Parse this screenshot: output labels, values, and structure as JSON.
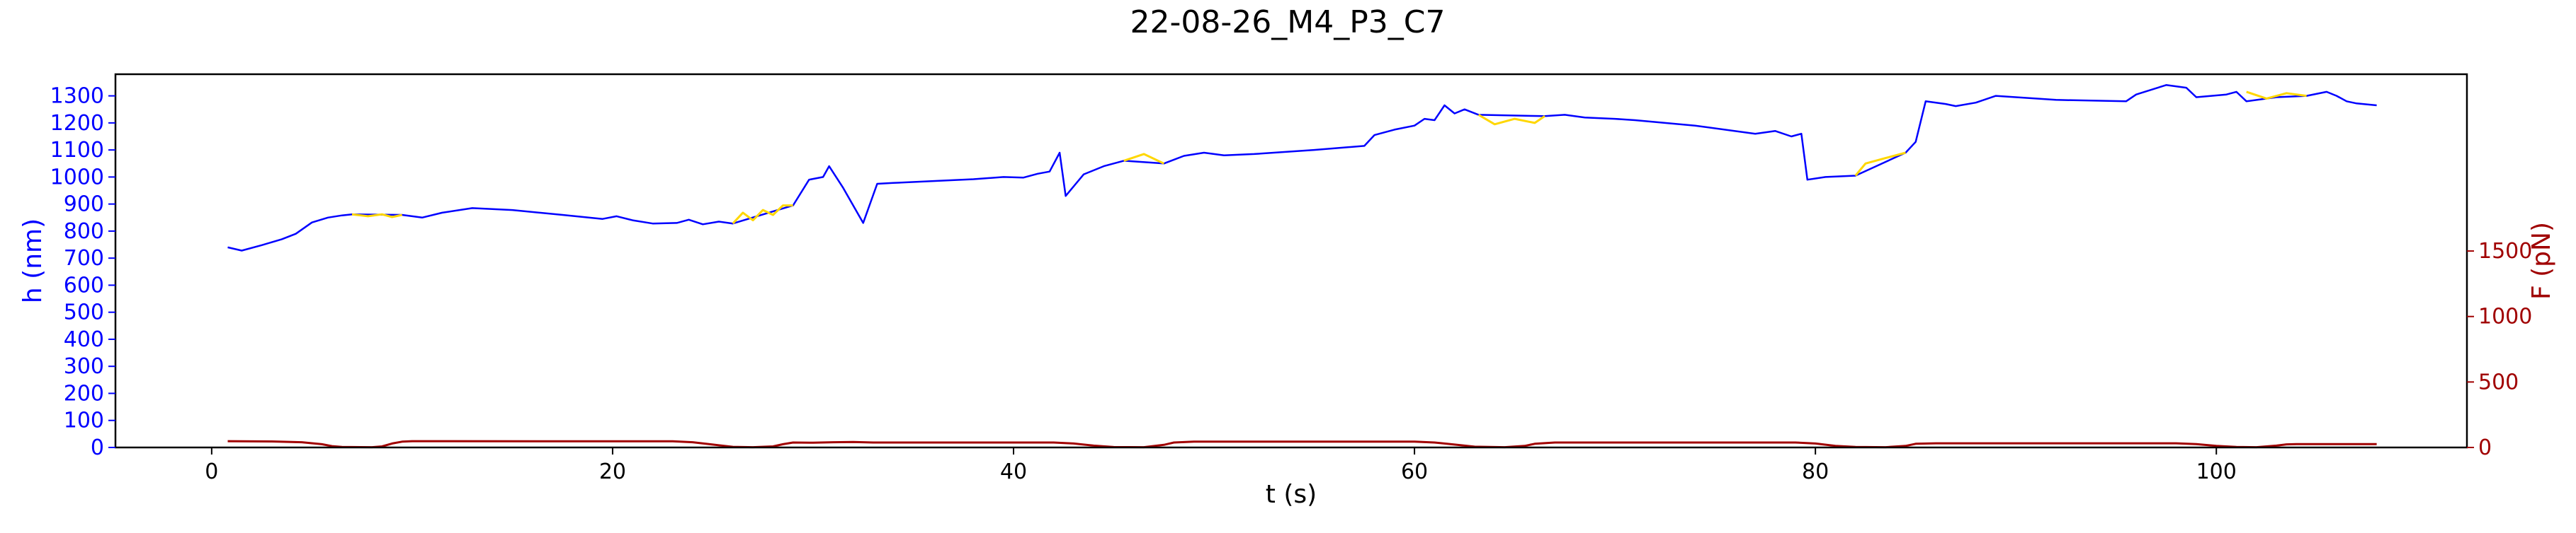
{
  "chart_data": {
    "type": "line",
    "title": "22-08-26_M4_P3_C7",
    "xlabel": "t (s)",
    "ylabel_left": "h (nm)",
    "ylabel_right": "F (pN)",
    "xlim": [
      -4.8,
      112.5
    ],
    "ylim_left": [
      0,
      1380
    ],
    "ylim_right": [
      0,
      2850
    ],
    "x_ticks": [
      0,
      20,
      40,
      60,
      80,
      100
    ],
    "y_left_ticks": [
      0,
      100,
      200,
      300,
      400,
      500,
      600,
      700,
      800,
      900,
      1000,
      1100,
      1200,
      1300
    ],
    "y_right_ticks": [
      0,
      500,
      1000,
      1500
    ],
    "grid": false,
    "colors": {
      "height": "#0000ff",
      "highlight": "#ffd700",
      "force": "#a00000",
      "left_axis": "#0000ff",
      "right_axis": "#a00000",
      "frame": "#000000"
    },
    "series": [
      {
        "role": "height",
        "axis": "left",
        "points": [
          [
            0.8,
            740
          ],
          [
            1.5,
            728
          ],
          [
            2.5,
            748
          ],
          [
            3.5,
            770
          ],
          [
            4.2,
            790
          ],
          [
            5.0,
            832
          ],
          [
            5.8,
            850
          ],
          [
            6.5,
            858
          ],
          [
            7.0,
            862
          ],
          [
            9.5,
            860
          ],
          [
            10.5,
            850
          ],
          [
            11.5,
            868
          ],
          [
            13.0,
            885
          ],
          [
            15.0,
            878
          ],
          [
            17.5,
            860
          ],
          [
            19.5,
            845
          ],
          [
            20.2,
            855
          ],
          [
            21.0,
            840
          ],
          [
            22.0,
            828
          ],
          [
            23.2,
            830
          ],
          [
            23.8,
            842
          ],
          [
            24.5,
            825
          ],
          [
            25.3,
            835
          ],
          [
            26.0,
            828
          ],
          [
            29.0,
            895
          ],
          [
            29.8,
            990
          ],
          [
            30.5,
            1000
          ],
          [
            30.8,
            1040
          ],
          [
            31.5,
            960
          ],
          [
            32.5,
            830
          ],
          [
            33.2,
            975
          ],
          [
            34.0,
            978
          ],
          [
            36.0,
            985
          ],
          [
            38.0,
            992
          ],
          [
            39.5,
            1000
          ],
          [
            40.5,
            998
          ],
          [
            41.2,
            1012
          ],
          [
            41.8,
            1020
          ],
          [
            42.3,
            1090
          ],
          [
            42.6,
            930
          ],
          [
            43.5,
            1010
          ],
          [
            44.5,
            1040
          ],
          [
            45.5,
            1060
          ],
          [
            47.5,
            1050
          ],
          [
            48.5,
            1078
          ],
          [
            49.5,
            1090
          ],
          [
            50.5,
            1080
          ],
          [
            52.0,
            1085
          ],
          [
            55.0,
            1100
          ],
          [
            57.5,
            1115
          ],
          [
            58.0,
            1155
          ],
          [
            59.0,
            1175
          ],
          [
            60.0,
            1190
          ],
          [
            60.5,
            1215
          ],
          [
            61.0,
            1210
          ],
          [
            61.5,
            1265
          ],
          [
            62.0,
            1235
          ],
          [
            62.5,
            1250
          ],
          [
            63.2,
            1230
          ],
          [
            66.5,
            1225
          ],
          [
            67.5,
            1230
          ],
          [
            68.5,
            1220
          ],
          [
            70.0,
            1215
          ],
          [
            71.0,
            1210
          ],
          [
            74.0,
            1190
          ],
          [
            77.0,
            1160
          ],
          [
            78.0,
            1170
          ],
          [
            78.8,
            1150
          ],
          [
            79.3,
            1160
          ],
          [
            79.6,
            990
          ],
          [
            80.5,
            1000
          ],
          [
            82.0,
            1005
          ],
          [
            84.5,
            1090
          ],
          [
            85.0,
            1130
          ],
          [
            85.5,
            1280
          ],
          [
            86.5,
            1270
          ],
          [
            87.0,
            1262
          ],
          [
            88.0,
            1275
          ],
          [
            89.0,
            1300
          ],
          [
            92.0,
            1285
          ],
          [
            95.5,
            1280
          ],
          [
            96.0,
            1305
          ],
          [
            97.5,
            1340
          ],
          [
            98.5,
            1330
          ],
          [
            99.0,
            1295
          ],
          [
            100.5,
            1305
          ],
          [
            101.0,
            1315
          ],
          [
            101.5,
            1280
          ],
          [
            103.0,
            1295
          ],
          [
            104.5,
            1300
          ],
          [
            105.5,
            1315
          ],
          [
            106.0,
            1300
          ],
          [
            106.5,
            1280
          ],
          [
            107.0,
            1272
          ],
          [
            108.0,
            1265
          ]
        ]
      },
      {
        "role": "highlight",
        "axis": "left",
        "segments": [
          [
            [
              7.0,
              862
            ],
            [
              7.8,
              855
            ],
            [
              8.5,
              862
            ],
            [
              9.0,
              852
            ],
            [
              9.5,
              860
            ]
          ],
          [
            [
              26.0,
              828
            ],
            [
              26.5,
              868
            ],
            [
              27.0,
              840
            ],
            [
              27.5,
              878
            ],
            [
              28.0,
              860
            ],
            [
              28.5,
              895
            ],
            [
              29.0,
              895
            ]
          ],
          [
            [
              45.5,
              1060
            ],
            [
              46.5,
              1085
            ],
            [
              47.5,
              1050
            ]
          ],
          [
            [
              63.2,
              1230
            ],
            [
              64.0,
              1195
            ],
            [
              65.0,
              1215
            ],
            [
              66.0,
              1200
            ],
            [
              66.5,
              1225
            ]
          ],
          [
            [
              82.0,
              1005
            ],
            [
              82.5,
              1050
            ],
            [
              83.5,
              1070
            ],
            [
              84.5,
              1090
            ]
          ],
          [
            [
              101.5,
              1315
            ],
            [
              102.5,
              1290
            ],
            [
              103.5,
              1310
            ],
            [
              104.5,
              1300
            ]
          ]
        ]
      },
      {
        "role": "force",
        "axis": "right",
        "points": [
          [
            0.8,
            48
          ],
          [
            3.0,
            46
          ],
          [
            4.5,
            40
          ],
          [
            5.5,
            25
          ],
          [
            6.0,
            10
          ],
          [
            6.5,
            4
          ],
          [
            8.0,
            2
          ],
          [
            8.5,
            8
          ],
          [
            9.0,
            30
          ],
          [
            9.5,
            44
          ],
          [
            10.0,
            48
          ],
          [
            20.0,
            47
          ],
          [
            23.0,
            47
          ],
          [
            24.0,
            40
          ],
          [
            25.0,
            22
          ],
          [
            26.0,
            5
          ],
          [
            27.0,
            2
          ],
          [
            28.0,
            8
          ],
          [
            28.5,
            25
          ],
          [
            29.0,
            38
          ],
          [
            30.0,
            36
          ],
          [
            31.0,
            40
          ],
          [
            32.0,
            42
          ],
          [
            33.0,
            38
          ],
          [
            42.0,
            38
          ],
          [
            43.0,
            30
          ],
          [
            44.0,
            14
          ],
          [
            45.0,
            3
          ],
          [
            46.5,
            2
          ],
          [
            47.5,
            20
          ],
          [
            48.0,
            38
          ],
          [
            49.0,
            44
          ],
          [
            60.0,
            44
          ],
          [
            61.0,
            38
          ],
          [
            62.0,
            22
          ],
          [
            63.0,
            6
          ],
          [
            64.5,
            2
          ],
          [
            65.5,
            12
          ],
          [
            66.0,
            28
          ],
          [
            67.0,
            38
          ],
          [
            79.0,
            38
          ],
          [
            80.0,
            30
          ],
          [
            81.0,
            12
          ],
          [
            82.0,
            4
          ],
          [
            83.5,
            2
          ],
          [
            84.5,
            12
          ],
          [
            85.0,
            28
          ],
          [
            86.0,
            32
          ],
          [
            98.0,
            32
          ],
          [
            99.0,
            26
          ],
          [
            100.0,
            12
          ],
          [
            101.0,
            4
          ],
          [
            102.0,
            2
          ],
          [
            103.0,
            14
          ],
          [
            103.5,
            24
          ],
          [
            104.0,
            26
          ],
          [
            108.0,
            26
          ]
        ]
      }
    ]
  }
}
